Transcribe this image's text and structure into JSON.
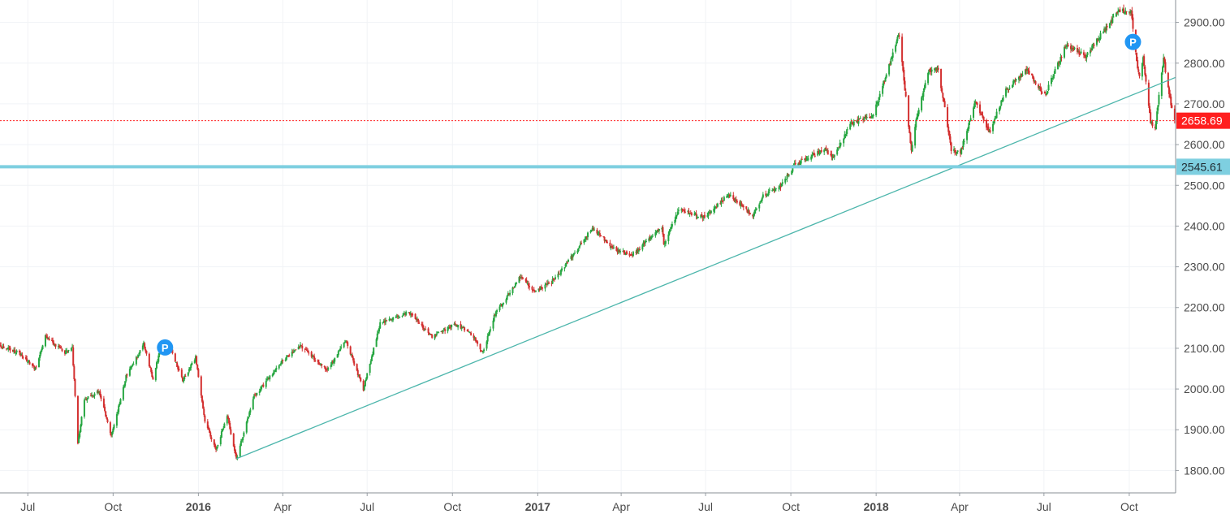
{
  "chart_data": {
    "type": "candlestick",
    "instrument": "",
    "x_axis": {
      "ticks": [
        {
          "label": "Jul",
          "date": "2015-07-01",
          "bold": false
        },
        {
          "label": "Oct",
          "date": "2015-10-01",
          "bold": false
        },
        {
          "label": "2016",
          "date": "2016-01-01",
          "bold": true
        },
        {
          "label": "Apr",
          "date": "2016-04-01",
          "bold": false
        },
        {
          "label": "Jul",
          "date": "2016-07-01",
          "bold": false
        },
        {
          "label": "Oct",
          "date": "2016-10-01",
          "bold": false
        },
        {
          "label": "2017",
          "date": "2017-01-01",
          "bold": true
        },
        {
          "label": "Apr",
          "date": "2017-04-01",
          "bold": false
        },
        {
          "label": "Jul",
          "date": "2017-07-01",
          "bold": false
        },
        {
          "label": "Oct",
          "date": "2017-10-01",
          "bold": false
        },
        {
          "label": "2018",
          "date": "2018-01-01",
          "bold": true
        },
        {
          "label": "Apr",
          "date": "2018-04-01",
          "bold": false
        },
        {
          "label": "Jul",
          "date": "2018-07-01",
          "bold": false
        },
        {
          "label": "Oct",
          "date": "2018-10-01",
          "bold": false
        }
      ],
      "range": [
        "2015-06-01",
        "2018-11-20"
      ]
    },
    "y_axis": {
      "ticks": [
        "2900.00",
        "2800.00",
        "2700.00",
        "2600.00",
        "2500.00",
        "2400.00",
        "2300.00",
        "2200.00",
        "2100.00",
        "2000.00",
        "1900.00",
        "1800.00"
      ],
      "range": [
        1745,
        2955
      ],
      "position": "right"
    },
    "grid": true,
    "colors": {
      "up": "#26a641",
      "down": "#d32f2f",
      "trendline": "#4db6ac",
      "support": "#7ecfe0",
      "last_price": "#ff1e1e",
      "marker": "#2196f3"
    },
    "path": [
      [
        "2015-06-01",
        2107
      ],
      [
        "2015-06-20",
        2090
      ],
      [
        "2015-07-09",
        2050
      ],
      [
        "2015-07-20",
        2128
      ],
      [
        "2015-08-10",
        2090
      ],
      [
        "2015-08-18",
        2100
      ],
      [
        "2015-08-24",
        1867
      ],
      [
        "2015-08-31",
        1975
      ],
      [
        "2015-09-16",
        1995
      ],
      [
        "2015-09-29",
        1882
      ],
      [
        "2015-10-15",
        2030
      ],
      [
        "2015-11-03",
        2110
      ],
      [
        "2015-11-13",
        2025
      ],
      [
        "2015-11-20",
        2090
      ],
      [
        "2015-12-02",
        2100
      ],
      [
        "2015-12-15",
        2020
      ],
      [
        "2015-12-29",
        2078
      ],
      [
        "2016-01-08",
        1920
      ],
      [
        "2016-01-20",
        1850
      ],
      [
        "2016-02-01",
        1935
      ],
      [
        "2016-02-11",
        1829
      ],
      [
        "2016-03-01",
        1980
      ],
      [
        "2016-04-01",
        2070
      ],
      [
        "2016-04-20",
        2105
      ],
      [
        "2016-05-19",
        2045
      ],
      [
        "2016-06-08",
        2120
      ],
      [
        "2016-06-27",
        2000
      ],
      [
        "2016-07-15",
        2160
      ],
      [
        "2016-08-15",
        2190
      ],
      [
        "2016-09-09",
        2127
      ],
      [
        "2016-10-03",
        2160
      ],
      [
        "2016-10-20",
        2140
      ],
      [
        "2016-11-03",
        2088
      ],
      [
        "2016-11-15",
        2180
      ],
      [
        "2016-12-13",
        2275
      ],
      [
        "2016-12-30",
        2240
      ],
      [
        "2017-01-20",
        2270
      ],
      [
        "2017-02-15",
        2350
      ],
      [
        "2017-03-01",
        2396
      ],
      [
        "2017-03-27",
        2340
      ],
      [
        "2017-04-13",
        2330
      ],
      [
        "2017-05-15",
        2400
      ],
      [
        "2017-05-17",
        2356
      ],
      [
        "2017-06-02",
        2439
      ],
      [
        "2017-06-30",
        2423
      ],
      [
        "2017-07-26",
        2477
      ],
      [
        "2017-08-21",
        2425
      ],
      [
        "2017-09-01",
        2476
      ],
      [
        "2017-09-21",
        2500
      ],
      [
        "2017-10-05",
        2550
      ],
      [
        "2017-11-07",
        2590
      ],
      [
        "2017-11-15",
        2565
      ],
      [
        "2017-12-04",
        2650
      ],
      [
        "2017-12-29",
        2674
      ],
      [
        "2018-01-26",
        2873
      ],
      [
        "2018-02-08",
        2581
      ],
      [
        "2018-02-13",
        2660
      ],
      [
        "2018-02-26",
        2780
      ],
      [
        "2018-03-09",
        2786
      ],
      [
        "2018-03-23",
        2588
      ],
      [
        "2018-04-02",
        2581
      ],
      [
        "2018-04-18",
        2708
      ],
      [
        "2018-05-03",
        2630
      ],
      [
        "2018-05-21",
        2733
      ],
      [
        "2018-06-12",
        2786
      ],
      [
        "2018-07-02",
        2720
      ],
      [
        "2018-07-25",
        2846
      ],
      [
        "2018-08-15",
        2818
      ],
      [
        "2018-09-20",
        2930
      ],
      [
        "2018-10-03",
        2925
      ],
      [
        "2018-10-10",
        2785
      ],
      [
        "2018-10-12",
        2767
      ],
      [
        "2018-10-16",
        2810
      ],
      [
        "2018-10-24",
        2656
      ],
      [
        "2018-10-29",
        2641
      ],
      [
        "2018-11-07",
        2813
      ],
      [
        "2018-11-13",
        2722
      ],
      [
        "2018-11-19",
        2658
      ]
    ],
    "trendline": {
      "from": [
        "2016-02-11",
        1829
      ],
      "to": [
        "2018-11-20",
        2765
      ]
    },
    "horizontal_lines": [
      {
        "value": 2545.61,
        "label": "2545.61",
        "kind": "support"
      },
      {
        "value": 2658.69,
        "label": "2658.69",
        "kind": "last_price"
      }
    ],
    "markers": [
      {
        "date": "2015-11-26",
        "value": 2102,
        "label": "P"
      },
      {
        "date": "2018-10-05",
        "value": 2852,
        "label": "P"
      }
    ]
  }
}
